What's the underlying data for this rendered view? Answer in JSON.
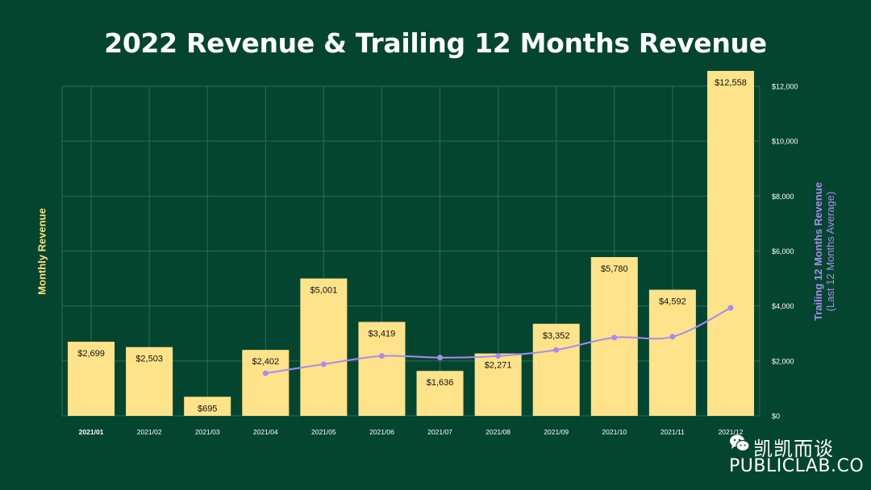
{
  "chart_data": {
    "type": "bar+line",
    "title": "2022 Revenue & Trailing 12 Months Revenue",
    "ylabel_left": "Monthly Revenue",
    "ylabel_right_line1": "Trailing 12 Months Revenue",
    "ylabel_right_line2": "(Last 12 Months Average)",
    "categories": [
      "2021/01",
      "2021/02",
      "2021/03",
      "2021/04",
      "2021/05",
      "2021/06",
      "2021/07",
      "2021/08",
      "2021/09",
      "2021/10",
      "2021/11",
      "2021/12"
    ],
    "bar_series": {
      "name": "Monthly Revenue",
      "values": [
        2699,
        2503,
        695,
        2402,
        5001,
        3419,
        1636,
        2271,
        3352,
        5780,
        4592,
        12558
      ],
      "labels": [
        "$2,699",
        "$2,503",
        "$695",
        "$2,402",
        "$5,001",
        "$3,419",
        "$1,636",
        "$2,271",
        "$3,352",
        "$5,780",
        "$4,592",
        "$12,558"
      ]
    },
    "line_series": {
      "name": "Trailing 12 Months Revenue",
      "values": [
        null,
        null,
        null,
        1550,
        1880,
        2180,
        2120,
        2180,
        2400,
        2850,
        2880,
        3930
      ]
    },
    "ylim": [
      0,
      12000
    ],
    "yticks": [
      0,
      2000,
      4000,
      6000,
      8000,
      10000,
      12000
    ],
    "ytick_labels": [
      "$0",
      "$2,000",
      "$4,000",
      "$6,000",
      "$8,000",
      "$10,000",
      "$12,000"
    ],
    "grid": true,
    "colors": {
      "background": "#044530",
      "bar": "#FFE38A",
      "line": "#A98BF0",
      "grid": "#2F6B55",
      "left_label": "#FCE183",
      "text": "#ffffff"
    }
  },
  "watermark": {
    "chinese": "凯凯而谈",
    "brand": "PUBLICLAB.CO",
    "icon": "wechat-icon"
  }
}
